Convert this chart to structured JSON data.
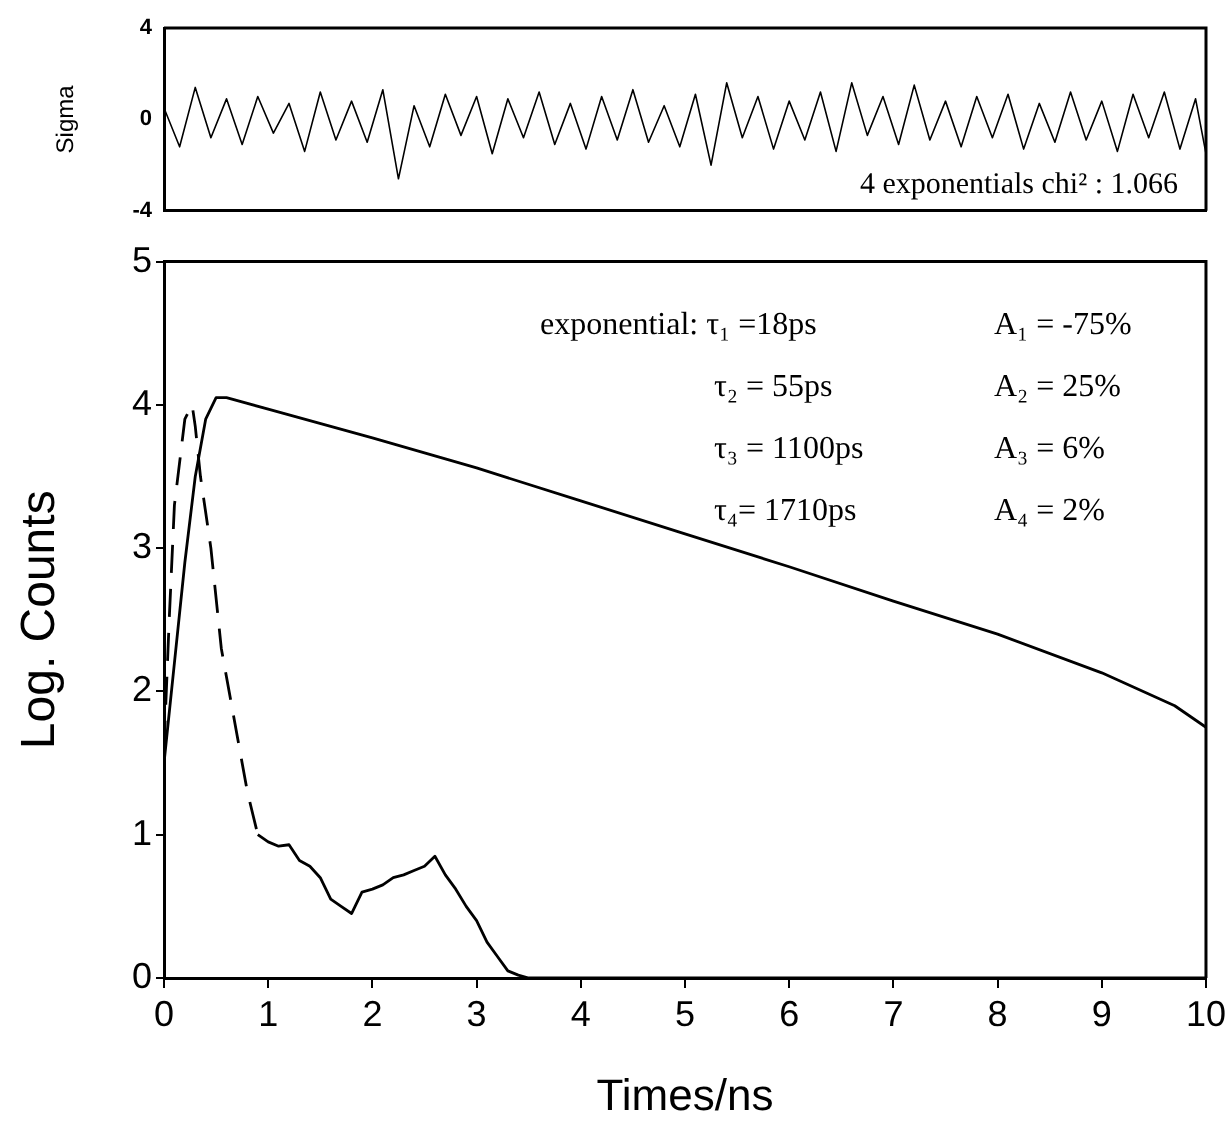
{
  "chart_data": [
    {
      "type": "line",
      "ylabel": "Sigma",
      "xlim": [
        0,
        10
      ],
      "ylim": [
        -4,
        4
      ],
      "yticks": [
        -4,
        0,
        4
      ],
      "tick_labels": "y",
      "grid": false,
      "legend": false,
      "marker": "none",
      "annotations": [
        "4 exponentials chi² : 1.066"
      ],
      "series": [
        {
          "color": "#000000",
          "line_style": "solid",
          "x": [
            0,
            0.15,
            0.3,
            0.45,
            0.6,
            0.75,
            0.9,
            1.05,
            1.2,
            1.35,
            1.5,
            1.65,
            1.8,
            1.95,
            2.1,
            2.25,
            2.4,
            2.55,
            2.7,
            2.85,
            3.0,
            3.15,
            3.3,
            3.45,
            3.6,
            3.75,
            3.9,
            4.05,
            4.2,
            4.35,
            4.5,
            4.65,
            4.8,
            4.95,
            5.1,
            5.25,
            5.4,
            5.55,
            5.7,
            5.85,
            6.0,
            6.15,
            6.3,
            6.45,
            6.6,
            6.75,
            6.9,
            7.05,
            7.2,
            7.35,
            7.5,
            7.65,
            7.8,
            7.95,
            8.1,
            8.25,
            8.4,
            8.55,
            8.7,
            8.85,
            9.0,
            9.15,
            9.3,
            9.45,
            9.6,
            9.75,
            9.9,
            10
          ],
          "values": [
            0.5,
            -1.2,
            1.4,
            -0.8,
            0.9,
            -1.1,
            1.0,
            -0.6,
            0.7,
            -1.4,
            1.2,
            -0.9,
            0.8,
            -1.0,
            1.3,
            -2.6,
            0.6,
            -1.2,
            1.1,
            -0.7,
            1.0,
            -1.5,
            0.9,
            -0.8,
            1.2,
            -1.1,
            0.7,
            -1.3,
            1.0,
            -0.9,
            1.3,
            -1.0,
            0.6,
            -1.2,
            1.1,
            -2.0,
            1.6,
            -0.8,
            1.0,
            -1.3,
            0.8,
            -0.9,
            1.2,
            -1.4,
            1.6,
            -0.7,
            1.0,
            -1.1,
            1.5,
            -0.9,
            0.8,
            -1.2,
            1.0,
            -0.8,
            1.1,
            -1.3,
            0.7,
            -1.0,
            1.2,
            -0.9,
            0.8,
            -1.4,
            1.1,
            -0.8,
            1.2,
            -1.3,
            0.9,
            -1.5
          ]
        }
      ]
    },
    {
      "type": "line",
      "xlabel": "Times/ns",
      "ylabel": "Log. Counts",
      "xlim": [
        0,
        10
      ],
      "ylim": [
        0,
        5
      ],
      "xticks": [
        0,
        1,
        2,
        3,
        4,
        5,
        6,
        7,
        8,
        9,
        10
      ],
      "yticks": [
        0,
        1,
        2,
        3,
        4,
        5
      ],
      "grid": false,
      "legend": false,
      "marker": "none",
      "annotations": [
        "exponential: τ₁ =18ps",
        "A₁ = -75%",
        "τ₂ = 55ps",
        "A₂ = 25%",
        "τ₃ = 1100ps",
        "A₃ = 6%",
        "τ₄= 1710ps",
        "A₄ = 2%"
      ],
      "series": [
        {
          "color": "#000000",
          "line_style": "solid",
          "x": [
            0,
            0.1,
            0.2,
            0.3,
            0.4,
            0.5,
            0.6,
            1,
            2,
            3,
            4,
            5,
            6,
            7,
            8,
            9,
            9.7,
            10
          ],
          "values": [
            1.5,
            2.2,
            2.9,
            3.5,
            3.9,
            4.05,
            4.05,
            3.97,
            3.77,
            3.56,
            3.33,
            3.1,
            2.87,
            2.63,
            2.4,
            2.13,
            1.9,
            1.75
          ]
        },
        {
          "color": "#000000",
          "line_style": "dashed",
          "x": [
            0,
            0.05,
            0.1,
            0.2,
            0.27,
            0.3,
            0.35,
            0.45,
            0.55,
            0.7,
            0.8,
            0.9
          ],
          "values": [
            1.6,
            2.5,
            3.3,
            3.9,
            4.0,
            3.85,
            3.5,
            3.0,
            2.3,
            1.7,
            1.3,
            1.0
          ]
        },
        {
          "color": "#000000",
          "line_style": "solid",
          "x": [
            0.9,
            1.0,
            1.1,
            1.2,
            1.3,
            1.4,
            1.5,
            1.6,
            1.7,
            1.8,
            1.9,
            2.0,
            2.1,
            2.2,
            2.3,
            2.4,
            2.5,
            2.6,
            2.7,
            2.8,
            2.9,
            3.0,
            3.1,
            3.2,
            3.3,
            3.4,
            3.5,
            4,
            5,
            5.8,
            6,
            7,
            8,
            9,
            10
          ],
          "values": [
            1.0,
            0.95,
            0.92,
            0.93,
            0.82,
            0.78,
            0.7,
            0.55,
            0.5,
            0.45,
            0.6,
            0.62,
            0.65,
            0.7,
            0.72,
            0.75,
            0.78,
            0.85,
            0.72,
            0.62,
            0.5,
            0.4,
            0.25,
            0.15,
            0.05,
            0.02,
            0,
            0,
            0,
            0,
            0,
            0,
            0,
            0,
            0
          ]
        }
      ]
    }
  ]
}
